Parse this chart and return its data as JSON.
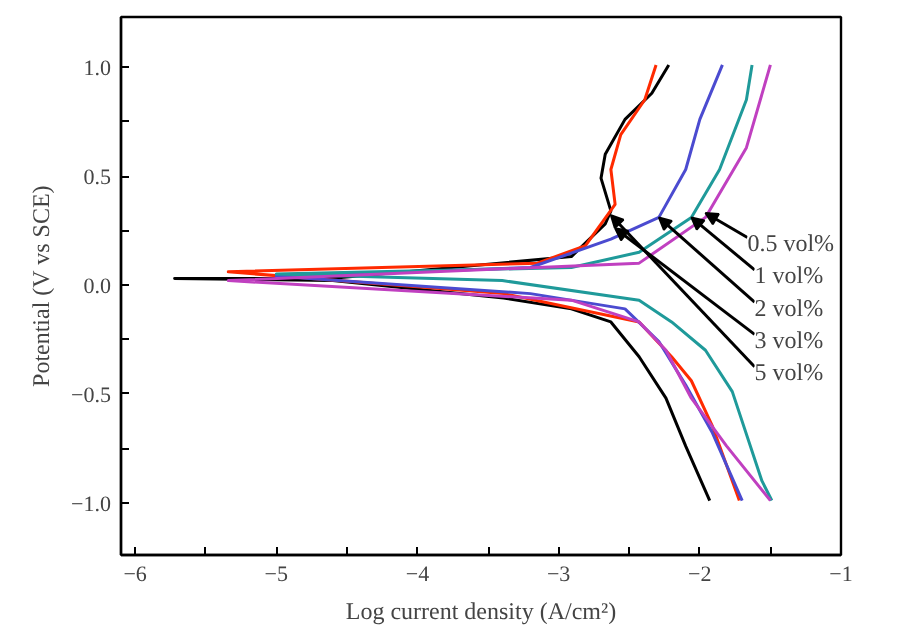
{
  "chart_data": {
    "type": "line",
    "xlabel": "Log current density (A/cm²)",
    "ylabel": "Potential (V vs SCE)",
    "xlim": [
      -6.1,
      -1.0
    ],
    "ylim": [
      -1.24,
      1.23
    ],
    "xticks": [
      -6,
      {
        "value": -5.5,
        "label": null
      },
      -5,
      {
        "value": -4.5,
        "label": null
      },
      -4,
      {
        "value": -3.5,
        "label": null
      },
      -3,
      {
        "value": -2.5,
        "label": null
      },
      -2,
      {
        "value": -1.5,
        "label": null
      },
      -1
    ],
    "yticks": [
      {
        "value": -1.0,
        "label": "−1.0"
      },
      {
        "value": -0.75,
        "label": null
      },
      {
        "value": -0.5,
        "label": "−0.5"
      },
      {
        "value": -0.25,
        "label": null
      },
      {
        "value": 0.0,
        "label": "0.0"
      },
      {
        "value": 0.25,
        "label": null
      },
      {
        "value": 0.5,
        "label": "0.5"
      },
      {
        "value": 0.75,
        "label": null
      },
      {
        "value": 1.0,
        "label": "1.0"
      }
    ],
    "grid": false,
    "marker": "none",
    "line_style": "solid",
    "series": [
      {
        "color": "#000000",
        "x": [
          -1.93,
          -2.1,
          -2.24,
          -2.43,
          -2.63,
          -2.91,
          -3.39,
          -4.6,
          -5.72,
          -4.6,
          -2.91,
          -2.67,
          -2.63,
          -2.7,
          -2.67,
          -2.53,
          -2.34,
          -2.22
        ],
        "values": [
          -0.99,
          -0.74,
          -0.52,
          -0.33,
          -0.17,
          -0.11,
          -0.06,
          0.02,
          0.03,
          0.03,
          0.13,
          0.28,
          0.34,
          0.49,
          0.6,
          0.76,
          0.88,
          1.01
        ]
      },
      {
        "color": "#ff2a00",
        "x": [
          -1.72,
          -1.91,
          -2.06,
          -2.2,
          -2.43,
          -3.39,
          -5.34,
          -3.15,
          -2.81,
          -2.6,
          -2.63,
          -2.56,
          -2.39,
          -2.31
        ],
        "values": [
          -0.99,
          -0.65,
          -0.44,
          -0.33,
          -0.17,
          -0.04,
          0.06,
          0.1,
          0.18,
          0.37,
          0.53,
          0.69,
          0.85,
          1.01
        ]
      },
      {
        "color": "#4b4bd0",
        "x": [
          -1.7,
          -1.91,
          -2.1,
          -2.29,
          -2.53,
          -3.2,
          -5.0,
          -3.2,
          -2.63,
          -2.29,
          -2.1,
          -2.0,
          -1.84
        ],
        "values": [
          -0.99,
          -0.68,
          -0.46,
          -0.26,
          -0.11,
          -0.04,
          0.04,
          0.08,
          0.21,
          0.31,
          0.53,
          0.76,
          1.01
        ]
      },
      {
        "color": "#1f9a9a",
        "x": [
          -1.49,
          -1.56,
          -1.77,
          -1.96,
          -2.2,
          -2.43,
          -3.4,
          -5.0,
          -2.91,
          -2.43,
          -2.06,
          -1.86,
          -1.67,
          -1.63
        ],
        "values": [
          -0.99,
          -0.9,
          -0.49,
          -0.3,
          -0.17,
          -0.07,
          0.02,
          0.05,
          0.08,
          0.15,
          0.31,
          0.53,
          0.85,
          1.01
        ]
      },
      {
        "color": "#c040c0",
        "x": [
          -1.5,
          -1.81,
          -2.06,
          -2.24,
          -2.43,
          -2.91,
          -5.34,
          -2.43,
          -1.96,
          -1.67,
          -1.5
        ],
        "values": [
          -0.99,
          -0.74,
          -0.52,
          -0.3,
          -0.17,
          -0.07,
          0.02,
          0.1,
          0.31,
          0.63,
          1.01
        ]
      }
    ],
    "annotations": [
      {
        "text": "0.5 vol%",
        "x": -1.96,
        "y": 0.33
      },
      {
        "text": "1 vol%",
        "x": -2.06,
        "y": 0.31
      },
      {
        "text": "2 vol%",
        "x": -2.29,
        "y": 0.31
      },
      {
        "text": "3 vol%",
        "x": -2.6,
        "y": 0.26
      },
      {
        "text": "5 vol%",
        "x": -2.63,
        "y": 0.32
      }
    ]
  }
}
